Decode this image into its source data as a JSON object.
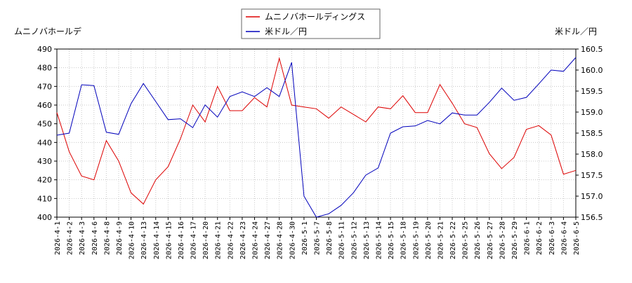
{
  "chart_data": {
    "type": "line",
    "ylabel_left": "ムニノバホールデ",
    "ylabel_right": "米ドル／円",
    "legend_position": "top-center",
    "grid": true,
    "ylim_left": [
      400,
      490
    ],
    "ylim_right": [
      156.5,
      160.5
    ],
    "yticks_left": [
      "400",
      "410",
      "420",
      "430",
      "440",
      "450",
      "460",
      "470",
      "480",
      "490"
    ],
    "yticks_right": [
      "156.5",
      "157.0",
      "157.5",
      "158.0",
      "158.5",
      "159.0",
      "159.5",
      "160.0",
      "160.5"
    ],
    "categories": [
      "2026-4-1",
      "2026-4-2",
      "2026-4-3",
      "2026-4-6",
      "2026-4-8",
      "2026-4-9",
      "2026-4-10",
      "2026-4-13",
      "2026-4-14",
      "2026-4-15",
      "2026-4-16",
      "2026-4-17",
      "2026-4-20",
      "2026-4-21",
      "2026-4-22",
      "2026-4-23",
      "2026-4-24",
      "2026-4-27",
      "2026-4-28",
      "2026-4-30",
      "2026-5-1",
      "2026-5-7",
      "2026-5-8",
      "2026-5-11",
      "2026-5-12",
      "2026-5-13",
      "2026-5-14",
      "2026-5-15",
      "2026-5-18",
      "2026-5-19",
      "2026-5-20",
      "2026-5-21",
      "2026-5-22",
      "2026-5-25",
      "2026-5-26",
      "2026-5-27",
      "2026-5-28",
      "2026-5-29",
      "2026-6-1",
      "2026-6-2",
      "2026-6-3",
      "2026-6-4",
      "2026-6-5"
    ],
    "series": [
      {
        "name": "ムニノバホールディングス",
        "axis": "left",
        "color": "#dd0000",
        "values": [
          456,
          435,
          422,
          420,
          441,
          430,
          413,
          407,
          420,
          427,
          442,
          460,
          451,
          470,
          457,
          457,
          464,
          459,
          485,
          460,
          459,
          458,
          453,
          459,
          455,
          451,
          459,
          458,
          465,
          456,
          456,
          471,
          461,
          450,
          448,
          434,
          426,
          432,
          447,
          449,
          444,
          423,
          425
        ]
      },
      {
        "name": "米ドル／円",
        "axis": "right",
        "color": "#0000bb",
        "values": [
          158.45,
          158.5,
          159.65,
          159.63,
          158.52,
          158.47,
          159.2,
          159.68,
          159.25,
          158.82,
          158.84,
          158.63,
          159.17,
          158.88,
          159.37,
          159.48,
          159.37,
          159.58,
          159.37,
          160.18,
          157.0,
          156.5,
          156.58,
          156.78,
          157.08,
          157.5,
          157.67,
          158.5,
          158.65,
          158.67,
          158.8,
          158.72,
          158.98,
          158.93,
          158.93,
          159.23,
          159.57,
          159.28,
          159.35,
          159.67,
          160.0,
          159.97,
          160.3
        ]
      }
    ]
  }
}
